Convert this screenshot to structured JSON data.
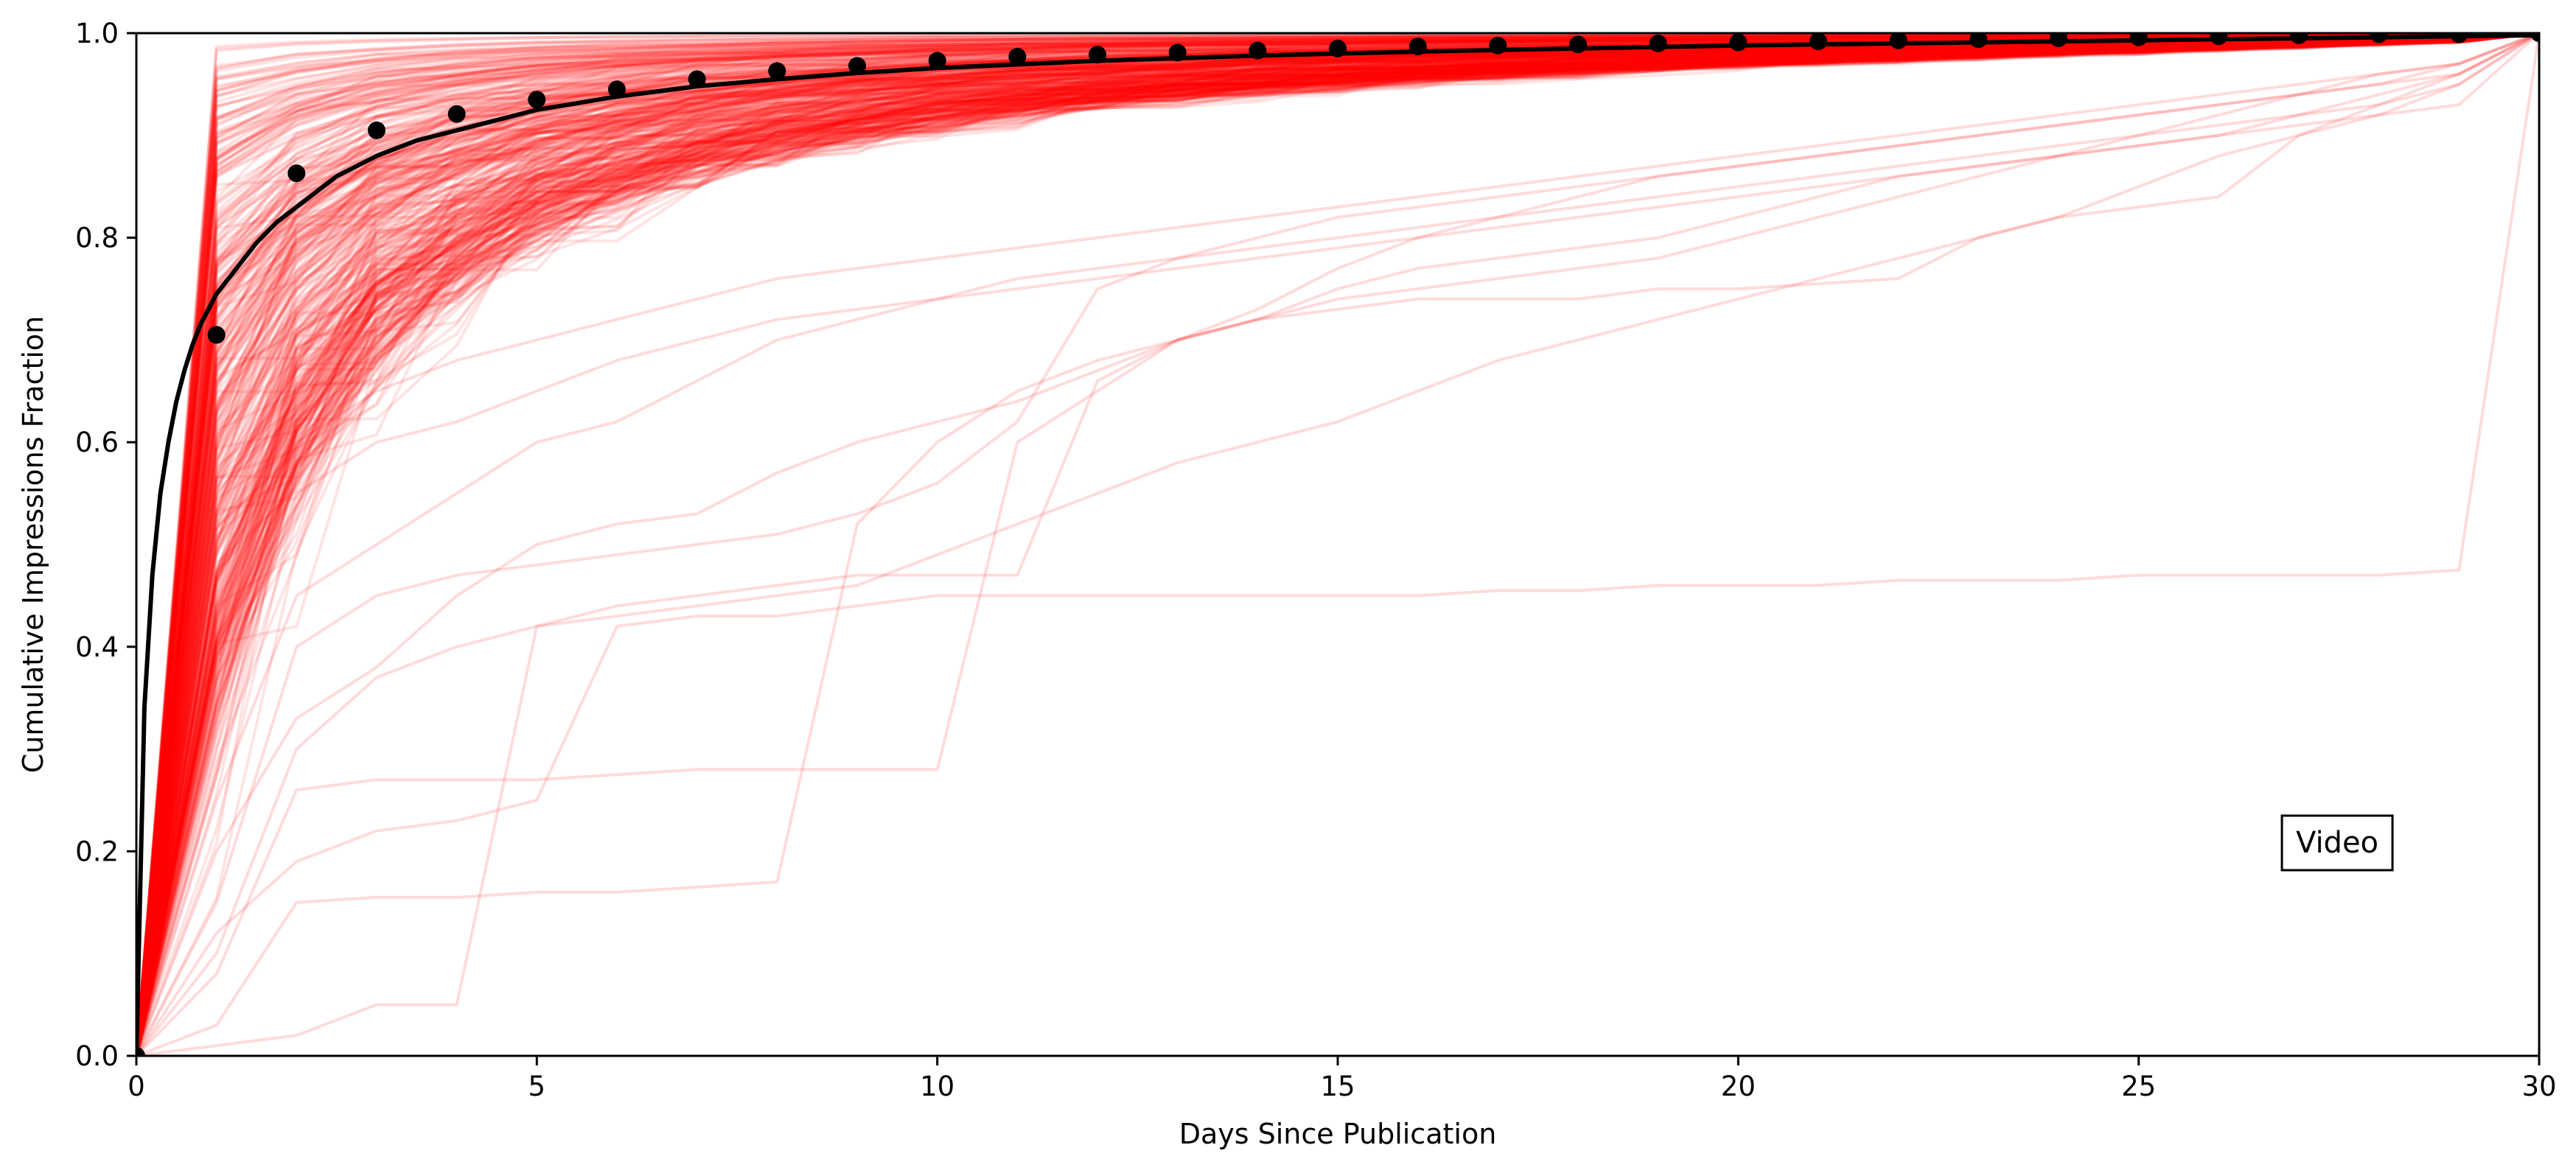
{
  "chart_data": {
    "type": "line",
    "title": "",
    "xlabel": "Days Since Publication",
    "ylabel": "Cumulative Impressions Fraction",
    "xlim": [
      0,
      30
    ],
    "ylim": [
      0,
      1
    ],
    "xticks": [
      0,
      5,
      10,
      15,
      20,
      25,
      30
    ],
    "yticks": [
      0.0,
      0.2,
      0.4,
      0.6,
      0.8,
      1.0
    ],
    "xtick_labels": [
      "0",
      "5",
      "10",
      "15",
      "20",
      "25",
      "30"
    ],
    "ytick_labels": [
      "0.0",
      "0.2",
      "0.4",
      "0.6",
      "0.8",
      "1.0"
    ],
    "grid": false,
    "legend": null,
    "annotation": "Video",
    "colors": {
      "background_lines": "#ff0000",
      "mean": "#000000"
    },
    "mean_series": {
      "x": [
        0,
        1,
        2,
        3,
        4,
        5,
        6,
        7,
        8,
        9,
        10,
        11,
        12,
        13,
        14,
        15,
        16,
        17,
        18,
        19,
        20,
        21,
        22,
        23,
        24,
        25,
        26,
        27,
        28,
        29,
        30
      ],
      "y": [
        0.0,
        0.705,
        0.863,
        0.905,
        0.921,
        0.935,
        0.945,
        0.955,
        0.963,
        0.968,
        0.973,
        0.977,
        0.979,
        0.981,
        0.983,
        0.985,
        0.987,
        0.988,
        0.989,
        0.99,
        0.991,
        0.992,
        0.993,
        0.994,
        0.995,
        0.996,
        0.997,
        0.998,
        0.999,
        0.999,
        1.0
      ]
    },
    "fit_curve": {
      "x": [
        0,
        0.1,
        0.2,
        0.3,
        0.4,
        0.5,
        0.6,
        0.7,
        0.8,
        0.9,
        1.0,
        1.25,
        1.5,
        1.75,
        2.0,
        2.5,
        3.0,
        3.5,
        4,
        5,
        6,
        7,
        8,
        9,
        10,
        12,
        14,
        16,
        18,
        20,
        22,
        24,
        26,
        28,
        30
      ],
      "y": [
        0.0,
        0.34,
        0.47,
        0.55,
        0.6,
        0.64,
        0.67,
        0.695,
        0.715,
        0.73,
        0.745,
        0.77,
        0.795,
        0.815,
        0.83,
        0.86,
        0.88,
        0.895,
        0.905,
        0.925,
        0.938,
        0.948,
        0.955,
        0.961,
        0.966,
        0.973,
        0.978,
        0.982,
        0.985,
        0.988,
        0.99,
        0.992,
        0.994,
        0.996,
        0.998
      ]
    },
    "individual_series": [
      {
        "x": [
          0,
          1,
          2,
          3,
          4,
          5,
          6,
          7,
          8,
          9,
          10,
          11,
          12,
          13,
          14,
          15,
          16,
          17,
          18,
          19,
          20,
          21,
          22,
          23,
          24,
          25,
          26,
          27,
          28,
          29,
          30
        ],
        "y": [
          0,
          0.12,
          0.19,
          0.22,
          0.23,
          0.25,
          0.42,
          0.43,
          0.43,
          0.44,
          0.45,
          0.45,
          0.45,
          0.45,
          0.45,
          0.45,
          0.45,
          0.455,
          0.455,
          0.46,
          0.46,
          0.46,
          0.465,
          0.465,
          0.465,
          0.47,
          0.47,
          0.47,
          0.47,
          0.475,
          1.0
        ]
      },
      {
        "x": [
          0,
          1,
          2,
          3,
          4,
          5,
          6,
          7,
          8,
          9,
          10,
          11,
          12,
          13,
          14,
          15,
          16,
          17,
          18,
          19,
          20,
          21,
          22,
          23,
          24,
          25,
          26,
          27,
          28,
          29,
          30
        ],
        "y": [
          0,
          0.08,
          0.26,
          0.27,
          0.27,
          0.27,
          0.275,
          0.28,
          0.28,
          0.28,
          0.28,
          0.6,
          0.65,
          0.7,
          0.72,
          0.73,
          0.74,
          0.74,
          0.74,
          0.75,
          0.75,
          0.755,
          0.76,
          0.8,
          0.82,
          0.83,
          0.84,
          0.9,
          0.92,
          0.95,
          1.0
        ]
      },
      {
        "x": [
          0,
          1,
          2,
          3,
          4,
          5,
          6,
          7,
          8,
          9,
          10,
          11,
          12,
          13,
          14,
          15,
          16,
          17,
          18,
          19,
          20,
          21,
          22,
          23,
          24,
          25,
          26,
          27,
          28,
          29,
          30
        ],
        "y": [
          0,
          0.03,
          0.15,
          0.155,
          0.155,
          0.16,
          0.16,
          0.165,
          0.17,
          0.52,
          0.6,
          0.65,
          0.68,
          0.7,
          0.72,
          0.74,
          0.75,
          0.76,
          0.77,
          0.78,
          0.8,
          0.82,
          0.84,
          0.86,
          0.88,
          0.9,
          0.92,
          0.94,
          0.96,
          0.97,
          1.0
        ]
      },
      {
        "x": [
          0,
          1,
          2,
          3,
          4,
          5,
          6,
          7,
          8,
          9,
          10,
          11,
          12,
          13,
          14,
          15,
          16,
          17,
          18,
          19,
          20,
          21,
          22,
          23,
          24,
          25,
          26,
          27,
          28,
          29,
          30
        ],
        "y": [
          0,
          0.01,
          0.02,
          0.05,
          0.05,
          0.42,
          0.44,
          0.45,
          0.46,
          0.47,
          0.47,
          0.47,
          0.66,
          0.7,
          0.72,
          0.75,
          0.77,
          0.78,
          0.79,
          0.8,
          0.82,
          0.84,
          0.86,
          0.87,
          0.88,
          0.89,
          0.9,
          0.92,
          0.94,
          0.96,
          1.0
        ]
      },
      {
        "x": [
          0,
          1,
          2,
          3,
          4,
          5,
          6,
          7,
          8,
          9,
          10,
          11,
          12,
          13,
          14,
          15,
          16,
          17,
          18,
          19,
          20,
          21,
          22,
          23,
          24,
          25,
          26,
          27,
          28,
          29,
          30
        ],
        "y": [
          0,
          0.1,
          0.3,
          0.37,
          0.4,
          0.42,
          0.43,
          0.44,
          0.45,
          0.46,
          0.49,
          0.52,
          0.55,
          0.58,
          0.6,
          0.62,
          0.65,
          0.68,
          0.7,
          0.72,
          0.74,
          0.76,
          0.78,
          0.8,
          0.82,
          0.85,
          0.88,
          0.9,
          0.93,
          0.96,
          1.0
        ]
      },
      {
        "x": [
          0,
          1,
          2,
          3,
          4,
          5,
          6,
          7,
          8,
          9,
          10,
          11,
          12,
          13,
          14,
          15,
          16,
          17,
          18,
          19,
          20,
          21,
          22,
          23,
          24,
          25,
          26,
          27,
          28,
          29,
          30
        ],
        "y": [
          0,
          0.2,
          0.33,
          0.38,
          0.45,
          0.5,
          0.52,
          0.53,
          0.57,
          0.6,
          0.62,
          0.64,
          0.67,
          0.7,
          0.73,
          0.77,
          0.8,
          0.82,
          0.84,
          0.86,
          0.87,
          0.88,
          0.89,
          0.9,
          0.91,
          0.92,
          0.93,
          0.94,
          0.95,
          0.97,
          1.0
        ]
      },
      {
        "x": [
          0,
          1,
          2,
          3,
          4,
          5,
          6,
          7,
          8,
          9,
          10,
          11,
          12,
          13,
          14,
          15,
          16,
          17,
          18,
          19,
          20,
          21,
          22,
          23,
          24,
          25,
          26,
          27,
          28,
          29,
          30
        ],
        "y": [
          0,
          0.15,
          0.4,
          0.45,
          0.47,
          0.48,
          0.49,
          0.5,
          0.51,
          0.53,
          0.56,
          0.62,
          0.75,
          0.78,
          0.8,
          0.82,
          0.83,
          0.84,
          0.85,
          0.86,
          0.87,
          0.88,
          0.89,
          0.9,
          0.91,
          0.92,
          0.93,
          0.94,
          0.95,
          0.96,
          1.0
        ]
      },
      {
        "x": [
          0,
          1,
          2,
          3,
          4,
          5,
          6,
          7,
          8,
          9,
          10,
          11,
          12,
          13,
          14,
          15,
          16,
          17,
          18,
          19,
          20,
          21,
          22,
          23,
          24,
          25,
          26,
          27,
          28,
          29,
          30
        ],
        "y": [
          0,
          0.25,
          0.45,
          0.5,
          0.55,
          0.6,
          0.62,
          0.66,
          0.7,
          0.72,
          0.74,
          0.76,
          0.77,
          0.78,
          0.79,
          0.8,
          0.81,
          0.82,
          0.83,
          0.84,
          0.85,
          0.86,
          0.87,
          0.88,
          0.89,
          0.9,
          0.91,
          0.92,
          0.93,
          0.95,
          1.0
        ]
      },
      {
        "x": [
          0,
          1,
          2,
          3,
          4,
          5,
          6,
          7,
          8,
          9,
          10,
          11,
          12,
          13,
          14,
          15,
          16,
          17,
          18,
          19,
          20,
          21,
          22,
          23,
          24,
          25,
          26,
          27,
          28,
          29,
          30
        ],
        "y": [
          0,
          0.3,
          0.55,
          0.6,
          0.62,
          0.65,
          0.68,
          0.7,
          0.72,
          0.73,
          0.74,
          0.75,
          0.76,
          0.77,
          0.78,
          0.79,
          0.8,
          0.81,
          0.82,
          0.83,
          0.84,
          0.85,
          0.86,
          0.87,
          0.88,
          0.89,
          0.9,
          0.91,
          0.92,
          0.93,
          1.0
        ]
      },
      {
        "x": [
          0,
          1,
          2,
          3,
          4,
          5,
          6,
          7,
          8,
          9,
          10,
          11,
          12,
          13,
          14,
          15,
          16,
          17,
          18,
          19,
          20,
          21,
          22,
          23,
          24,
          25,
          26,
          27,
          28,
          29,
          30
        ],
        "y": [
          0,
          0.4,
          0.6,
          0.65,
          0.68,
          0.7,
          0.72,
          0.74,
          0.76,
          0.77,
          0.78,
          0.79,
          0.8,
          0.81,
          0.82,
          0.83,
          0.84,
          0.85,
          0.86,
          0.87,
          0.88,
          0.89,
          0.9,
          0.91,
          0.92,
          0.93,
          0.94,
          0.95,
          0.96,
          0.97,
          1.0
        ]
      }
    ]
  }
}
